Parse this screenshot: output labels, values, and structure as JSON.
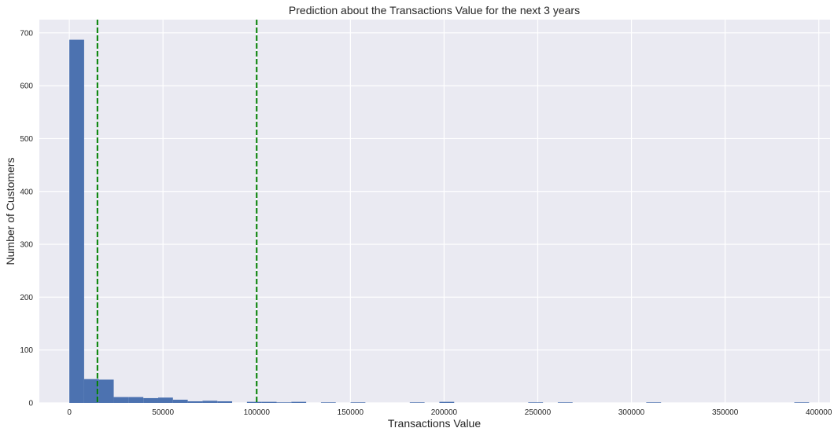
{
  "chart_data": {
    "type": "bar",
    "title": "Prediction about the Transactions Value for the next 3 years",
    "xlabel": "Transactions Value",
    "ylabel": "Number of Customers",
    "xlim": [
      -16000,
      406000
    ],
    "ylim": [
      0,
      725
    ],
    "xticks": [
      0,
      50000,
      100000,
      150000,
      200000,
      250000,
      300000,
      350000,
      400000
    ],
    "yticks": [
      0,
      100,
      200,
      300,
      400,
      500,
      600,
      700
    ],
    "grid": true,
    "bar_color": "#4c72b0",
    "vline_color": "#008000",
    "bin_width": 7900,
    "bins": [
      {
        "x0": 0,
        "count": 687
      },
      {
        "x0": 7900,
        "count": 45
      },
      {
        "x0": 15800,
        "count": 44
      },
      {
        "x0": 23700,
        "count": 11
      },
      {
        "x0": 31600,
        "count": 11
      },
      {
        "x0": 39500,
        "count": 9
      },
      {
        "x0": 47400,
        "count": 10
      },
      {
        "x0": 55300,
        "count": 6
      },
      {
        "x0": 63200,
        "count": 3
      },
      {
        "x0": 71100,
        "count": 4
      },
      {
        "x0": 79000,
        "count": 3
      },
      {
        "x0": 94800,
        "count": 2
      },
      {
        "x0": 102700,
        "count": 2
      },
      {
        "x0": 110600,
        "count": 1
      },
      {
        "x0": 118500,
        "count": 2
      },
      {
        "x0": 134300,
        "count": 1
      },
      {
        "x0": 150100,
        "count": 1
      },
      {
        "x0": 181700,
        "count": 1
      },
      {
        "x0": 197500,
        "count": 2
      },
      {
        "x0": 244900,
        "count": 1
      },
      {
        "x0": 260700,
        "count": 1
      },
      {
        "x0": 307900,
        "count": 1
      },
      {
        "x0": 386900,
        "count": 1
      }
    ],
    "vlines": [
      15000,
      100000
    ]
  }
}
